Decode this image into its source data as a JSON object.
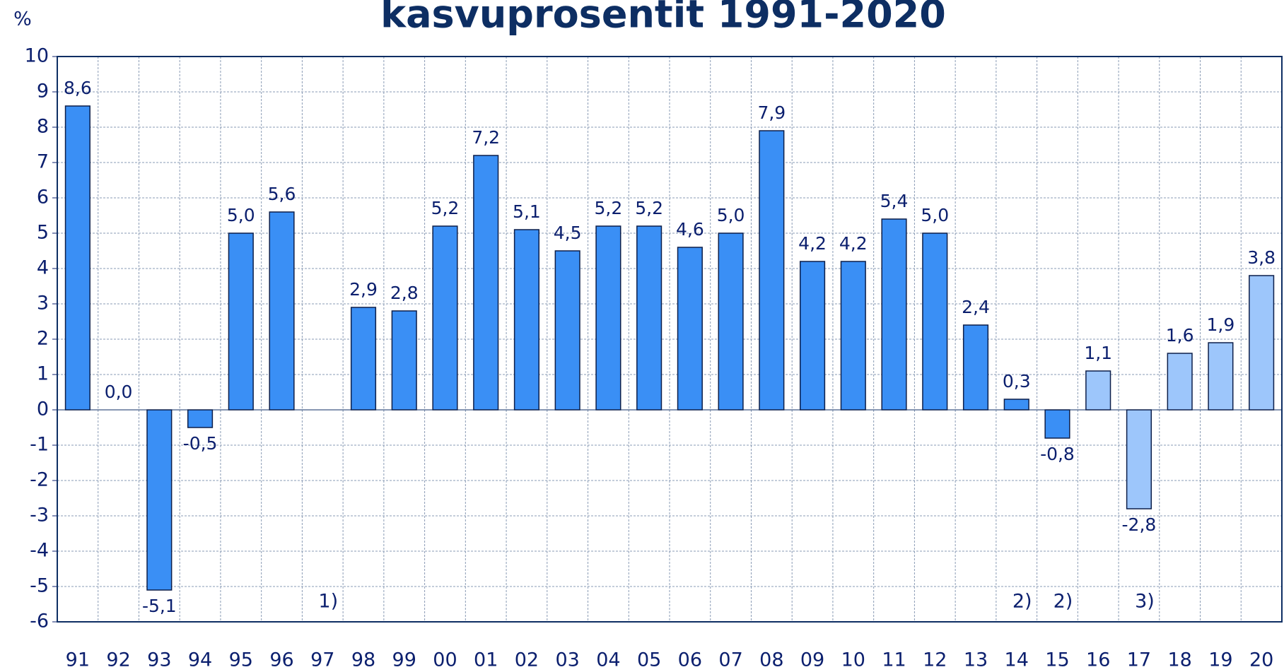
{
  "chart_data": {
    "type": "bar",
    "title": "kasvuprosentit 1991-2020",
    "y_label": "%",
    "categories": [
      "91",
      "92",
      "93",
      "94",
      "95",
      "96",
      "97",
      "98",
      "99",
      "00",
      "01",
      "02",
      "03",
      "04",
      "05",
      "06",
      "07",
      "08",
      "09",
      "10",
      "11",
      "12",
      "13",
      "14",
      "15",
      "16",
      "17",
      "18",
      "19",
      "20"
    ],
    "values": [
      8.6,
      0.0,
      -5.1,
      -0.5,
      5.0,
      5.6,
      null,
      2.9,
      2.8,
      5.2,
      7.2,
      5.1,
      4.5,
      5.2,
      5.2,
      4.6,
      5.0,
      7.9,
      4.2,
      4.2,
      5.4,
      5.0,
      2.4,
      0.3,
      -0.8,
      1.1,
      -2.8,
      1.6,
      1.9,
      3.8
    ],
    "value_labels": [
      "8,6",
      "0,0",
      "-5,1",
      "-0,5",
      "5,0",
      "5,6",
      null,
      "2,9",
      "2,8",
      "5,2",
      "7,2",
      "5,1",
      "4,5",
      "5,2",
      "5,2",
      "4,6",
      "5,0",
      "7,9",
      "4,2",
      "4,2",
      "5,4",
      "5,0",
      "2,4",
      "0,3",
      "-0,8",
      "1,1",
      "-2,8",
      "1,6",
      "1,9",
      "3,8"
    ],
    "colors": [
      "#3a8ff5",
      "#3a8ff5",
      "#3a8ff5",
      "#3a8ff5",
      "#3a8ff5",
      "#3a8ff5",
      "#3a8ff5",
      "#3a8ff5",
      "#3a8ff5",
      "#3a8ff5",
      "#3a8ff5",
      "#3a8ff5",
      "#3a8ff5",
      "#3a8ff5",
      "#3a8ff5",
      "#3a8ff5",
      "#3a8ff5",
      "#3a8ff5",
      "#3a8ff5",
      "#3a8ff5",
      "#3a8ff5",
      "#3a8ff5",
      "#3a8ff5",
      "#3a8ff5",
      "#3a8ff5",
      "#9dc6fb",
      "#9dc6fb",
      "#9dc6fb",
      "#9dc6fb",
      "#9dc6fb"
    ],
    "annotations": [
      {
        "category": "97",
        "text": "1)"
      },
      {
        "category": "14",
        "text": "2)"
      },
      {
        "category": "15",
        "text": "2)"
      },
      {
        "category": "17",
        "text": "3)"
      }
    ],
    "ylim": [
      -6,
      10
    ],
    "yticks": [
      -6,
      -5,
      -4,
      -3,
      -2,
      -1,
      0,
      1,
      2,
      3,
      4,
      5,
      6,
      7,
      8,
      9,
      10
    ],
    "grid": true
  }
}
